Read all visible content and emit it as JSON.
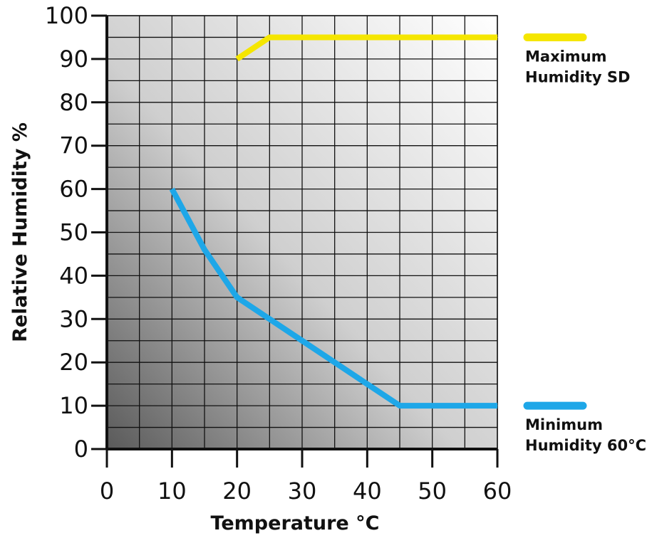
{
  "chart_data": {
    "type": "line",
    "title": "",
    "xlabel": "Temperature °C",
    "ylabel": "Relative Humidity %",
    "xlim": [
      0,
      60
    ],
    "ylim": [
      0,
      100
    ],
    "x_ticks": [
      0,
      10,
      20,
      30,
      40,
      50,
      60
    ],
    "y_ticks": [
      0,
      10,
      20,
      30,
      40,
      50,
      60,
      70,
      80,
      90,
      100
    ],
    "x_minor_step": 5,
    "y_minor_step": 5,
    "grid": true,
    "legend_position": "right",
    "series": [
      {
        "name": "Maximum Humidity SD",
        "legend_lines": [
          "Maximum",
          "Humidity SD"
        ],
        "color": "#f5e600",
        "points": [
          [
            20,
            90
          ],
          [
            25,
            95
          ],
          [
            60,
            95
          ]
        ]
      },
      {
        "name": "Minimum Humidity 60°C",
        "legend_lines": [
          "Minimum",
          "Humidity 60°C"
        ],
        "color": "#1ea7e8",
        "points": [
          [
            10,
            60
          ],
          [
            15,
            46
          ],
          [
            20,
            35
          ],
          [
            25,
            30
          ],
          [
            30,
            25
          ],
          [
            35,
            20
          ],
          [
            40,
            15
          ],
          [
            45,
            10
          ],
          [
            60,
            10
          ]
        ]
      }
    ],
    "colors": {
      "background_dark": "#5a5a5a",
      "background_light": "#ffffff",
      "grid": "#111111",
      "axis": "#111111"
    }
  }
}
